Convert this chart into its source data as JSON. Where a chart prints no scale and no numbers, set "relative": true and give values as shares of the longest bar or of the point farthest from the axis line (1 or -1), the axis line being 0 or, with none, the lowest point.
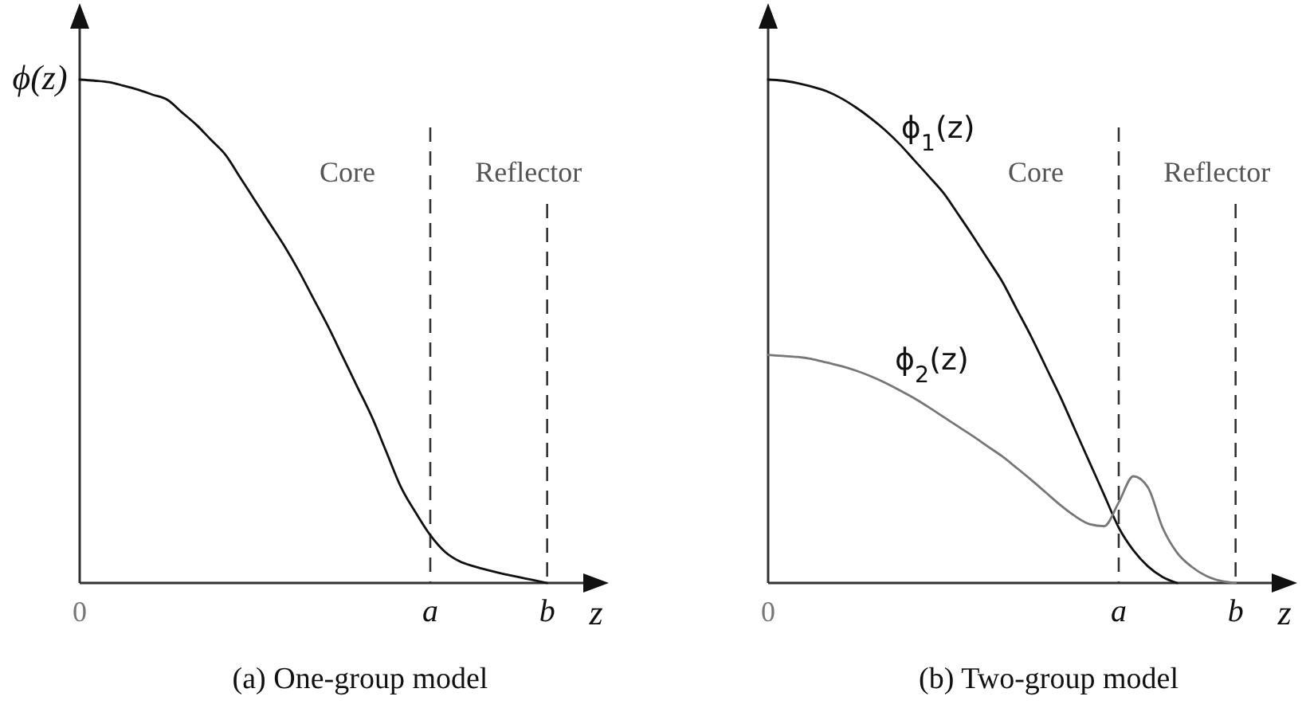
{
  "chart_data": [
    {
      "type": "line",
      "title": "(a) One-group model",
      "ylabel": "ϕ(z)",
      "xlabel": "z",
      "relative": true,
      "tick_labels": "x",
      "categories": [
        "0",
        null,
        null,
        null,
        null,
        null,
        null,
        null,
        null,
        null,
        null,
        null,
        null,
        null,
        null,
        null,
        null,
        null,
        null,
        null,
        null,
        null,
        null,
        null,
        "a",
        null,
        null,
        null,
        null,
        null,
        null,
        null,
        "b",
        null,
        null,
        null,
        null
      ],
      "annotations": [
        "Core",
        "Reflector"
      ],
      "ref_lines": [
        {
          "axis": "x",
          "value": "a",
          "line_style": "dashed"
        },
        {
          "axis": "x",
          "value": "b",
          "line_style": "dashed"
        }
      ],
      "series": [
        {
          "color": "#111111",
          "values": [
            1,
            0.998,
            0.995,
            0.988,
            0.98,
            0.97,
            0.96,
            0.935,
            0.91,
            0.88,
            0.85,
            0.805,
            0.76,
            0.715,
            0.67,
            0.62,
            0.565,
            0.51,
            0.45,
            0.39,
            0.33,
            0.26,
            0.19,
            0.14,
            0.095,
            0.062,
            0.043,
            0.033,
            0.025,
            0.018,
            0.012,
            0.006,
            0,
            null,
            null,
            null,
            null
          ]
        }
      ]
    },
    {
      "type": "line",
      "title": "(b) Two-group model",
      "xlabel": "z",
      "relative": true,
      "tick_labels": "x",
      "categories": [
        "0",
        null,
        null,
        null,
        null,
        null,
        null,
        null,
        null,
        null,
        null,
        null,
        null,
        null,
        null,
        null,
        null,
        null,
        null,
        null,
        null,
        null,
        null,
        null,
        "a",
        null,
        null,
        null,
        null,
        null,
        null,
        null,
        "b",
        null,
        null,
        null,
        null
      ],
      "annotations": [
        "Core",
        "Reflector"
      ],
      "ref_lines": [
        {
          "axis": "x",
          "value": "a",
          "line_style": "dashed"
        },
        {
          "axis": "x",
          "value": "b",
          "line_style": "dashed"
        }
      ],
      "series": [
        {
          "name": "ϕ$_{1}$(z)",
          "color": "#111111",
          "values": [
            1,
            0.998,
            0.993,
            0.986,
            0.977,
            0.963,
            0.945,
            0.924,
            0.9,
            0.872,
            0.84,
            0.808,
            0.775,
            0.733,
            0.69,
            0.645,
            0.6,
            0.545,
            0.49,
            0.43,
            0.37,
            0.305,
            0.24,
            0.175,
            0.11,
            0.065,
            0.033,
            0.012,
            0,
            null,
            null,
            null,
            null,
            null,
            null,
            null,
            null
          ]
        },
        {
          "name": "ϕ$_{2}$(z)",
          "color": "#777777",
          "values": [
            0.453,
            0.451,
            0.449,
            0.445,
            0.438,
            0.431,
            0.422,
            0.411,
            0.398,
            0.383,
            0.367,
            0.349,
            0.33,
            0.311,
            0.292,
            0.272,
            0.252,
            0.229,
            0.205,
            0.18,
            0.155,
            0.133,
            0.117,
            0.113,
            0.16,
            0.212,
            0.19,
            0.11,
            0.06,
            0.032,
            0.014,
            0.004,
            0,
            null,
            null,
            null,
            null
          ]
        }
      ]
    }
  ]
}
